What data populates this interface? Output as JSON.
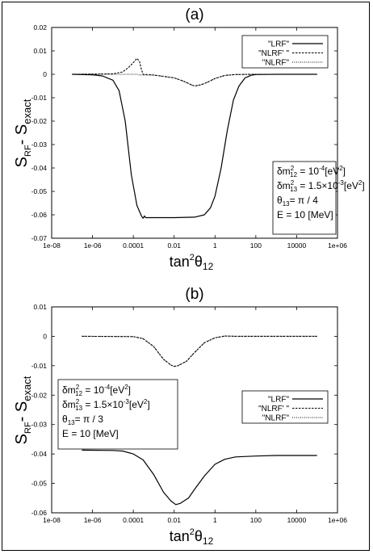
{
  "chart_data": [
    {
      "type": "line",
      "panel_label": "(a)",
      "ylabel": "S",
      "ylabel_sub1": "RF",
      "ylabel_mid": "- S",
      "ylabel_sub2": "exact",
      "xlabel": "tan",
      "xlabel_sup": "2",
      "xlabel_mid": "θ",
      "xlabel_sub": "12",
      "x_scale": "log",
      "xlim": [
        1e-08,
        1000000.0
      ],
      "ylim": [
        -0.07,
        0.02
      ],
      "xticks": [
        "1e-08",
        "1e-06",
        "0.0001",
        "0.01",
        "1",
        "100",
        "10000",
        "1e+06"
      ],
      "yticks": [
        "0.02",
        "0.01",
        "0",
        "-0.01",
        "-0.02",
        "-0.03",
        "-0.04",
        "-0.05",
        "-0.06",
        "-0.07"
      ],
      "legend_position": "top-right",
      "params": [
        [
          "δm",
          "2",
          "12",
          " = 10",
          "-4",
          "[eV",
          "2",
          "]"
        ],
        [
          "δm",
          "2",
          "13",
          " = 1.5×10",
          "-3",
          "[eV",
          "2",
          "]"
        ],
        [
          "θ",
          "",
          "13",
          "=  π / 4",
          "",
          "",
          "",
          ""
        ],
        [
          "E = 10 [MeV]",
          "",
          "",
          "",
          "",
          "",
          "",
          ""
        ]
      ],
      "series": [
        {
          "name": "\"LRF\"",
          "style": "solid",
          "points": [
            [
              1e-07,
              0
            ],
            [
              1e-06,
              -0.0002
            ],
            [
              3e-06,
              -0.0007
            ],
            [
              1e-05,
              -0.0025
            ],
            [
              2e-05,
              -0.007
            ],
            [
              4e-05,
              -0.02
            ],
            [
              8e-05,
              -0.043
            ],
            [
              0.00015,
              -0.056
            ],
            [
              0.00025,
              -0.0605
            ],
            [
              0.0003,
              -0.0615
            ],
            [
              0.00035,
              -0.0605
            ],
            [
              0.0004,
              -0.0612
            ],
            [
              0.001,
              -0.0612
            ],
            [
              0.01,
              -0.0612
            ],
            [
              0.1,
              -0.061
            ],
            [
              0.3,
              -0.06
            ],
            [
              0.6,
              -0.057
            ],
            [
              1,
              -0.052
            ],
            [
              2,
              -0.04
            ],
            [
              4,
              -0.024
            ],
            [
              8,
              -0.011
            ],
            [
              15,
              -0.005
            ],
            [
              30,
              -0.0015
            ],
            [
              60,
              -0.0004
            ],
            [
              100,
              -0.0001
            ],
            [
              1000,
              0
            ],
            [
              100000.0,
              0
            ]
          ]
        },
        {
          "name": "\"NLRF' \"",
          "style": "dashed",
          "points": [
            [
              1e-07,
              0
            ],
            [
              1e-05,
              0.0002
            ],
            [
              3e-05,
              0.001
            ],
            [
              6e-05,
              0.003
            ],
            [
              0.0001,
              0.005
            ],
            [
              0.00015,
              0.0068
            ],
            [
              0.0002,
              0.0055
            ],
            [
              0.00025,
              0.002
            ],
            [
              0.0003,
              0
            ],
            [
              0.001,
              -0.0003
            ],
            [
              0.01,
              -0.0015
            ],
            [
              0.03,
              -0.003
            ],
            [
              0.07,
              -0.0045
            ],
            [
              0.1,
              -0.005
            ],
            [
              0.2,
              -0.0045
            ],
            [
              0.4,
              -0.0035
            ],
            [
              1,
              -0.0018
            ],
            [
              3,
              -0.0005
            ],
            [
              10,
              -0.0001
            ],
            [
              100,
              0
            ],
            [
              100000.0,
              0
            ]
          ]
        },
        {
          "name": "\"NLRF\"",
          "style": "dotted",
          "points": [
            [
              1e-07,
              0
            ],
            [
              0.00015,
              0
            ],
            [
              0.0002,
              -0.0003
            ],
            [
              0.001,
              -0.0003
            ],
            [
              0.01,
              -0.0015
            ],
            [
              0.03,
              -0.003
            ],
            [
              0.07,
              -0.0045
            ],
            [
              0.1,
              -0.005
            ],
            [
              0.2,
              -0.0045
            ],
            [
              0.4,
              -0.0035
            ],
            [
              1,
              -0.0018
            ],
            [
              3,
              -0.0005
            ],
            [
              10,
              -0.0001
            ],
            [
              100,
              0
            ],
            [
              100000.0,
              0
            ]
          ]
        }
      ]
    },
    {
      "type": "line",
      "panel_label": "(b)",
      "ylabel": "S",
      "ylabel_sub1": "RF",
      "ylabel_mid": "- S",
      "ylabel_sub2": "exact",
      "xlabel": "tan",
      "xlabel_sup": "2",
      "xlabel_mid": "θ",
      "xlabel_sub": "12",
      "x_scale": "log",
      "xlim": [
        1e-08,
        1000000.0
      ],
      "ylim": [
        -0.06,
        0.01
      ],
      "xticks": [
        "1e-08",
        "1e-06",
        "0.0001",
        "0.01",
        "1",
        "100",
        "10000",
        "1e+06"
      ],
      "yticks": [
        "0.01",
        "0",
        "-0.01",
        "-0.02",
        "-0.03",
        "-0.04",
        "-0.05",
        "-0.06"
      ],
      "legend_position": "right",
      "params": [
        [
          "δm",
          "2",
          "12",
          " = 10",
          "-4",
          "[eV",
          "2",
          "]"
        ],
        [
          "δm",
          "2",
          "13",
          " = 1.5×10",
          "-3",
          "[eV",
          "2",
          "]"
        ],
        [
          "θ",
          "",
          "13",
          "=  π / 3",
          "",
          "",
          "",
          ""
        ],
        [
          "E = 10 [MeV]",
          "",
          "",
          "",
          "",
          "",
          "",
          ""
        ]
      ],
      "series": [
        {
          "name": "\"LRF\"",
          "style": "solid",
          "points": [
            [
              3e-07,
              -0.0387
            ],
            [
              1e-05,
              -0.0388
            ],
            [
              3e-05,
              -0.039
            ],
            [
              0.0001,
              -0.04
            ],
            [
              0.0003,
              -0.042
            ],
            [
              0.001,
              -0.047
            ],
            [
              0.003,
              -0.053
            ],
            [
              0.007,
              -0.056
            ],
            [
              0.012,
              -0.0572
            ],
            [
              0.02,
              -0.0568
            ],
            [
              0.05,
              -0.055
            ],
            [
              0.1,
              -0.052
            ],
            [
              0.3,
              -0.0475
            ],
            [
              1,
              -0.0435
            ],
            [
              3,
              -0.0418
            ],
            [
              10,
              -0.041
            ],
            [
              100,
              -0.0407
            ],
            [
              1000,
              -0.0405
            ],
            [
              100000.0,
              -0.0405
            ]
          ]
        },
        {
          "name": "\"NLRF' \"",
          "style": "dashed",
          "points": [
            [
              3e-07,
              0
            ],
            [
              0.0001,
              -0.0001
            ],
            [
              0.0003,
              -0.0008
            ],
            [
              0.001,
              -0.0035
            ],
            [
              0.003,
              -0.0078
            ],
            [
              0.007,
              -0.0098
            ],
            [
              0.01,
              -0.0102
            ],
            [
              0.015,
              -0.01
            ],
            [
              0.04,
              -0.0085
            ],
            [
              0.1,
              -0.0055
            ],
            [
              0.3,
              -0.0022
            ],
            [
              1,
              -0.0005
            ],
            [
              3,
              0.0001
            ],
            [
              10,
              0
            ],
            [
              100000.0,
              0
            ]
          ]
        },
        {
          "name": "\"NLRF\"",
          "style": "dotted",
          "points": [
            [
              3e-07,
              0
            ],
            [
              0.0001,
              -0.0001
            ],
            [
              0.0003,
              -0.0008
            ],
            [
              0.001,
              -0.0035
            ],
            [
              0.003,
              -0.0078
            ],
            [
              0.007,
              -0.0098
            ],
            [
              0.01,
              -0.0102
            ],
            [
              0.015,
              -0.01
            ],
            [
              0.04,
              -0.0085
            ],
            [
              0.1,
              -0.0055
            ],
            [
              0.3,
              -0.0022
            ],
            [
              1,
              -0.0005
            ],
            [
              3,
              0.0001
            ],
            [
              10,
              0
            ],
            [
              100000.0,
              0
            ]
          ]
        }
      ]
    }
  ]
}
